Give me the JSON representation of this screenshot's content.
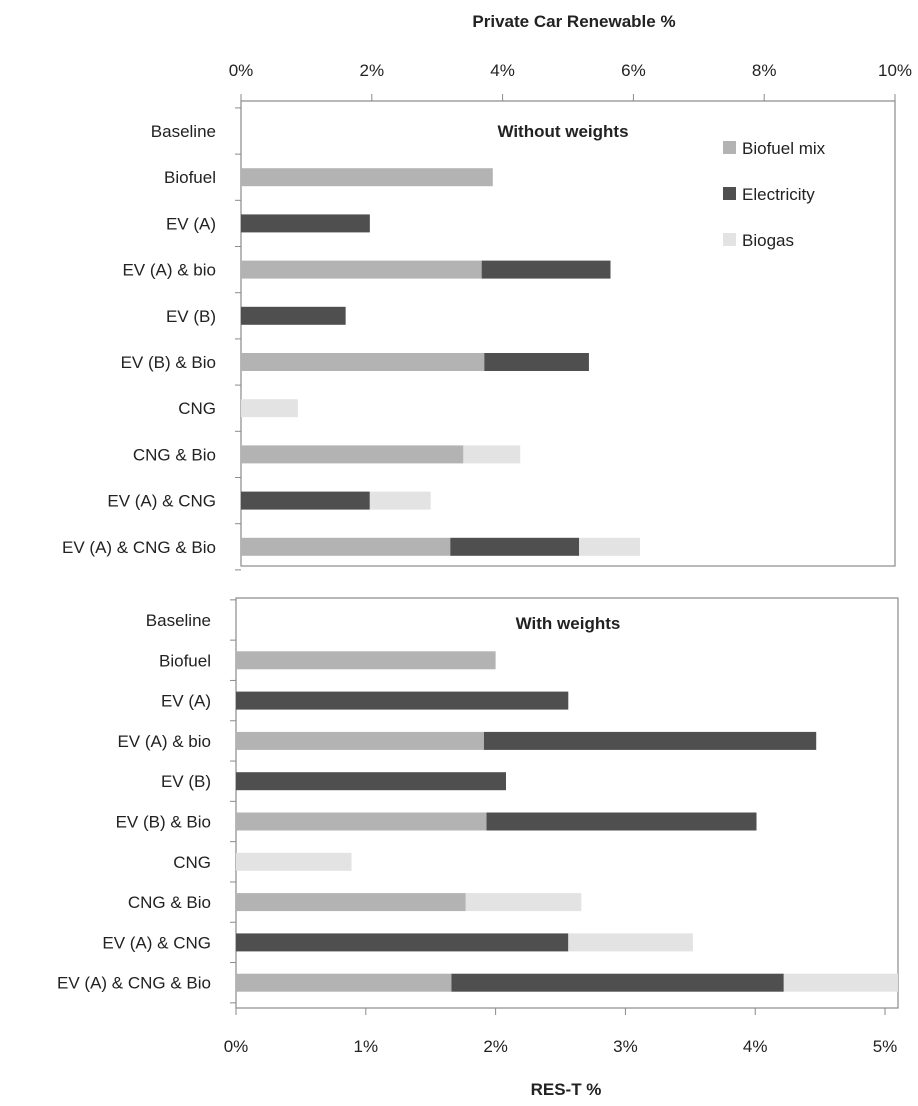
{
  "colors": {
    "Biofuel mix": "#b3b3b3",
    "Electricity": "#4f4f4f",
    "Biogas": "#e3e3e3",
    "frame": "#8a8a8a"
  },
  "chart_data": [
    {
      "type": "bar",
      "orientation": "horizontal",
      "stacked": true,
      "title": "Without weights",
      "axis_title": "Private Car Renewable %",
      "xlim": [
        0,
        10
      ],
      "xtick_labels": [
        "0%",
        "2%",
        "4%",
        "6%",
        "8%",
        "10%"
      ],
      "categories": [
        "Baseline",
        "Biofuel",
        "EV (A)",
        "EV (A) & bio",
        "EV (B)",
        "EV (B) & Bio",
        "CNG",
        "CNG & Bio",
        "EV (A) & CNG",
        "EV (A) & CNG & Bio"
      ],
      "legend": {
        "position": "top-right"
      },
      "series": [
        {
          "name": "Biofuel mix",
          "values": [
            0,
            3.85,
            0,
            3.68,
            0,
            3.72,
            0,
            3.4,
            0,
            3.2
          ]
        },
        {
          "name": "Electricity",
          "values": [
            0,
            0,
            1.97,
            1.97,
            1.6,
            1.6,
            0,
            0,
            1.97,
            1.97
          ]
        },
        {
          "name": "Biogas",
          "values": [
            0,
            0,
            0,
            0,
            0,
            0,
            0.87,
            0.87,
            0.93,
            0.93
          ]
        }
      ]
    },
    {
      "type": "bar",
      "orientation": "horizontal",
      "stacked": true,
      "title": "With weights",
      "axis_title": "RES-T %",
      "xlim": [
        0,
        5.1
      ],
      "xtick_labels": [
        "0%",
        "1%",
        "2%",
        "3%",
        "4%",
        "5%"
      ],
      "categories": [
        "Baseline",
        "Biofuel",
        "EV (A)",
        "EV (A) & bio",
        "EV (B)",
        "EV (B) & Bio",
        "CNG",
        "CNG & Bio",
        "EV (A) & CNG",
        "EV (A) & CNG & Bio"
      ],
      "series": [
        {
          "name": "Biofuel mix",
          "values": [
            0,
            2.0,
            0,
            1.91,
            0,
            1.93,
            0,
            1.77,
            0,
            1.66
          ]
        },
        {
          "name": "Electricity",
          "values": [
            0,
            0,
            2.56,
            2.56,
            2.08,
            2.08,
            0,
            0,
            2.56,
            2.56
          ]
        },
        {
          "name": "Biogas",
          "values": [
            0,
            0,
            0,
            0,
            0,
            0,
            0.89,
            0.89,
            0.96,
            0.88
          ]
        }
      ]
    }
  ]
}
